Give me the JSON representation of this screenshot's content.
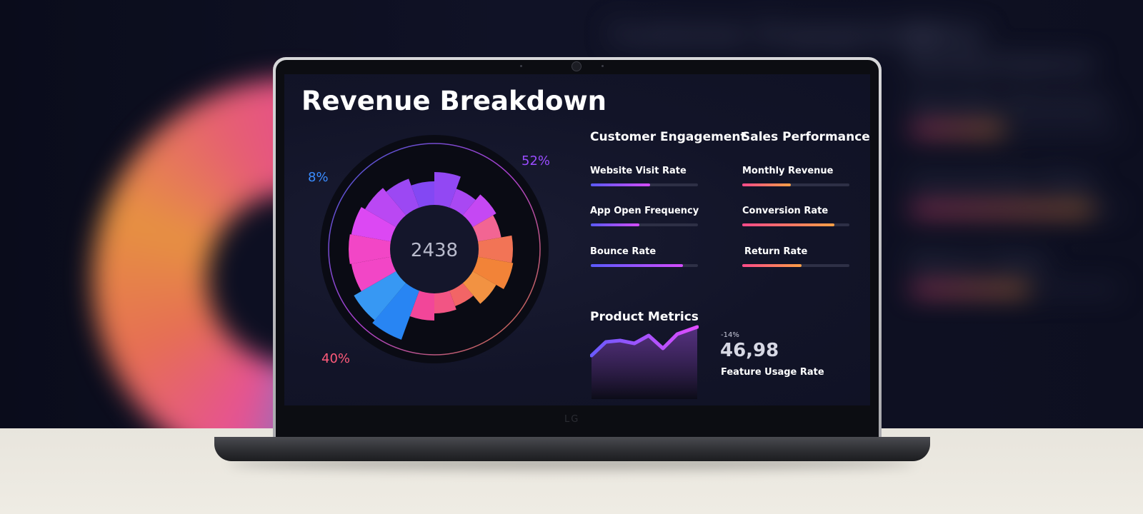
{
  "background": {
    "headers": [
      "Customer Engagement",
      "Sales Performance"
    ],
    "labels": [
      "Monthly Revenue",
      "Conversion Rate",
      "Return Rate"
    ]
  },
  "screen": {
    "title": "Revenue Breakdown",
    "chart": {
      "center_value": "2438",
      "labels": {
        "blue": "8%",
        "purple": "52%",
        "orange": "40%"
      }
    },
    "customer_engagement": {
      "title": "Customer Engagement",
      "metrics": [
        {
          "label": "Website Visit Rate",
          "value": 0.55
        },
        {
          "label": "App Open Frequency",
          "value": 0.45
        },
        {
          "label": "Bounce Rate",
          "value": 0.86
        }
      ]
    },
    "sales_performance": {
      "title": "Sales Performance",
      "metrics": [
        {
          "label": "Monthly Revenue",
          "value": 0.45
        },
        {
          "label": "Conversion Rate",
          "value": 0.86
        },
        {
          "label": "Return Rate",
          "value": 0.55
        }
      ]
    },
    "product_metrics": {
      "title": "Product Metrics",
      "delta": "-14%",
      "value": "46,98",
      "label": "Feature Usage Rate"
    }
  },
  "device": {
    "brand": "LG"
  },
  "colors": {
    "accent_blue": "#5a5aff",
    "accent_purple": "#d54cff",
    "accent_pink": "#ff4a8a",
    "accent_orange": "#ffa045"
  }
}
